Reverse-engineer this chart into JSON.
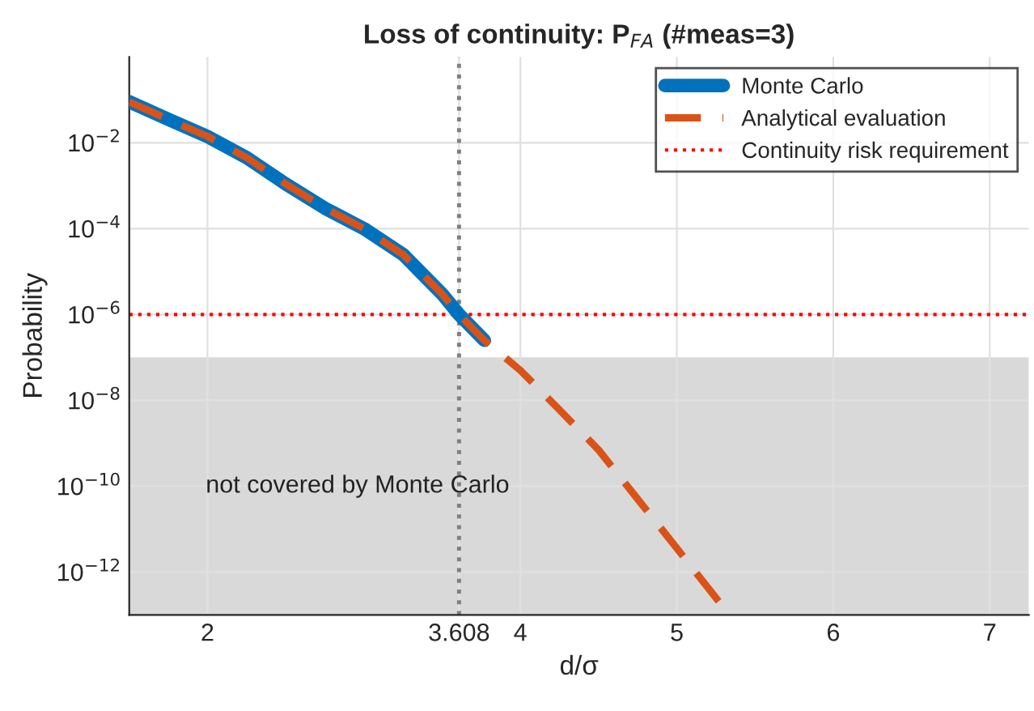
{
  "chart_data": {
    "type": "line",
    "title": "Loss of continuity: P$_{FA}$ (#meas=3)",
    "xlabel": "d/σ",
    "ylabel": "Probability",
    "series": [
      {
        "name": "Monte Carlo",
        "color": "#0072bd",
        "line_style": "solid",
        "x": [
          1.5,
          1.75,
          2,
          2.25,
          2.5,
          2.75,
          3,
          3.25,
          3.5,
          3.608,
          3.77
        ],
        "values": [
          0.09,
          0.035,
          0.014,
          0.0045,
          0.0011,
          0.0003,
          0.0001,
          2.5e-05,
          3e-06,
          1e-06,
          2.5e-07
        ]
      },
      {
        "name": "Analytical evaluation",
        "color": "#d95319",
        "line_style": "dashed",
        "x": [
          1.5,
          1.75,
          2,
          2.25,
          2.5,
          2.75,
          3,
          3.25,
          3.5,
          3.608,
          3.77,
          4,
          4.25,
          4.5,
          4.75,
          5,
          5.25,
          5.34
        ],
        "values": [
          0.09,
          0.035,
          0.014,
          0.0045,
          0.0011,
          0.0003,
          0.0001,
          2.5e-05,
          3e-06,
          1e-06,
          2.5e-07,
          5e-08,
          6e-09,
          7e-10,
          5e-11,
          3.6e-12,
          2.5e-13,
          1e-13
        ]
      }
    ],
    "ref_lines": [
      {
        "axis": "x",
        "value": 3.608,
        "color": "#808080",
        "line_style": "dotted"
      },
      {
        "axis": "y",
        "value": 1e-06,
        "label": "Continuity risk requirement",
        "color": "#ff0000",
        "line_style": "dotted"
      }
    ],
    "bands": [
      {
        "axis": "y",
        "from": 1e-13,
        "to": 1e-07,
        "color": "#d9d9d9",
        "label": "not covered by Monte Carlo"
      }
    ],
    "log": "y",
    "xlim": [
      1.5,
      7.25
    ],
    "ylim": [
      1e-13,
      1
    ],
    "xticks": [
      2,
      3.608,
      4,
      5,
      6,
      7
    ],
    "yticks": [
      {
        "value": 1e-12,
        "label": "10$^{−12}$"
      },
      {
        "value": 1e-10,
        "label": "10$^{−10}$"
      },
      {
        "value": 1e-08,
        "label": "10$^{−8}$"
      },
      {
        "value": 1e-06,
        "label": "10$^{−6}$"
      },
      {
        "value": 0.0001,
        "label": "10$^{−4}$"
      },
      {
        "value": 0.01,
        "label": "10$^{−2}$"
      }
    ],
    "grid": true,
    "legend": "top right"
  }
}
